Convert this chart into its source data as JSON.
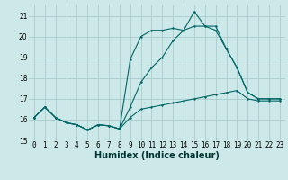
{
  "xlabel": "Humidex (Indice chaleur)",
  "bg_color": "#cce8e8",
  "grid_color": "#aacccc",
  "line_color": "#006666",
  "xlim": [
    -0.5,
    23.5
  ],
  "ylim": [
    15,
    21.5
  ],
  "yticks": [
    15,
    16,
    17,
    18,
    19,
    20,
    21
  ],
  "xticks": [
    0,
    1,
    2,
    3,
    4,
    5,
    6,
    7,
    8,
    9,
    10,
    11,
    12,
    13,
    14,
    15,
    16,
    17,
    18,
    19,
    20,
    21,
    22,
    23
  ],
  "series1_x": [
    0,
    1,
    2,
    3,
    4,
    5,
    6,
    7,
    8,
    9,
    10,
    11,
    12,
    13,
    14,
    15,
    16,
    17,
    18,
    19,
    20,
    21,
    22,
    23
  ],
  "series1_y": [
    16.1,
    16.6,
    16.1,
    15.85,
    15.75,
    15.5,
    15.75,
    15.7,
    15.55,
    16.1,
    16.5,
    16.6,
    16.7,
    16.8,
    16.9,
    17.0,
    17.1,
    17.2,
    17.3,
    17.4,
    17.0,
    16.9,
    16.9,
    16.9
  ],
  "series2_x": [
    0,
    1,
    2,
    3,
    4,
    5,
    6,
    7,
    8,
    9,
    10,
    11,
    12,
    13,
    14,
    15,
    16,
    17,
    18,
    19,
    20,
    21,
    22,
    23
  ],
  "series2_y": [
    16.1,
    16.6,
    16.1,
    15.85,
    15.75,
    15.5,
    15.75,
    15.7,
    15.55,
    16.6,
    17.8,
    18.5,
    19.0,
    19.8,
    20.3,
    20.5,
    20.5,
    20.3,
    19.4,
    18.5,
    17.3,
    17.0,
    17.0,
    17.0
  ],
  "series3_x": [
    0,
    1,
    2,
    3,
    4,
    5,
    6,
    7,
    8,
    9,
    10,
    11,
    12,
    13,
    14,
    15,
    16,
    17,
    18,
    19,
    20,
    21,
    22,
    23
  ],
  "series3_y": [
    16.1,
    16.6,
    16.1,
    15.85,
    15.75,
    15.5,
    15.75,
    15.7,
    15.55,
    18.9,
    20.0,
    20.3,
    20.3,
    20.4,
    20.3,
    21.2,
    20.5,
    20.5,
    19.4,
    18.5,
    17.3,
    17.0,
    17.0,
    17.0
  ],
  "xlabel_fontsize": 7,
  "tick_fontsize": 5.5,
  "lw": 0.8,
  "ms": 2.0
}
